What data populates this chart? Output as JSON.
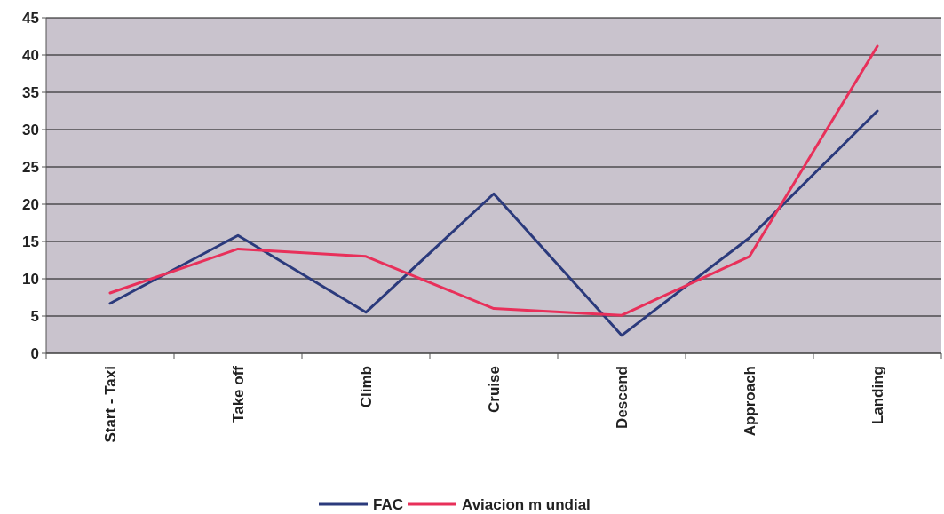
{
  "chart_data": {
    "type": "line",
    "categories": [
      "Start - Taxi",
      "Take off",
      "Climb",
      "Cruise",
      "Descend",
      "Approach",
      "Landing"
    ],
    "series": [
      {
        "name": "FAC",
        "color": "#2b3a7c",
        "values": [
          6.7,
          15.8,
          5.5,
          21.4,
          2.4,
          15.5,
          32.5
        ]
      },
      {
        "name": "Aviacion m undial",
        "color": "#e8305a",
        "values": [
          8.1,
          14,
          13,
          6,
          5.1,
          13,
          41.2
        ]
      }
    ],
    "ylim": [
      0,
      45
    ],
    "yticks": [
      0,
      5,
      10,
      15,
      20,
      25,
      30,
      35,
      40,
      45
    ],
    "grid": "y",
    "legend": "bottom",
    "marker": "none",
    "line_style": "solid"
  }
}
